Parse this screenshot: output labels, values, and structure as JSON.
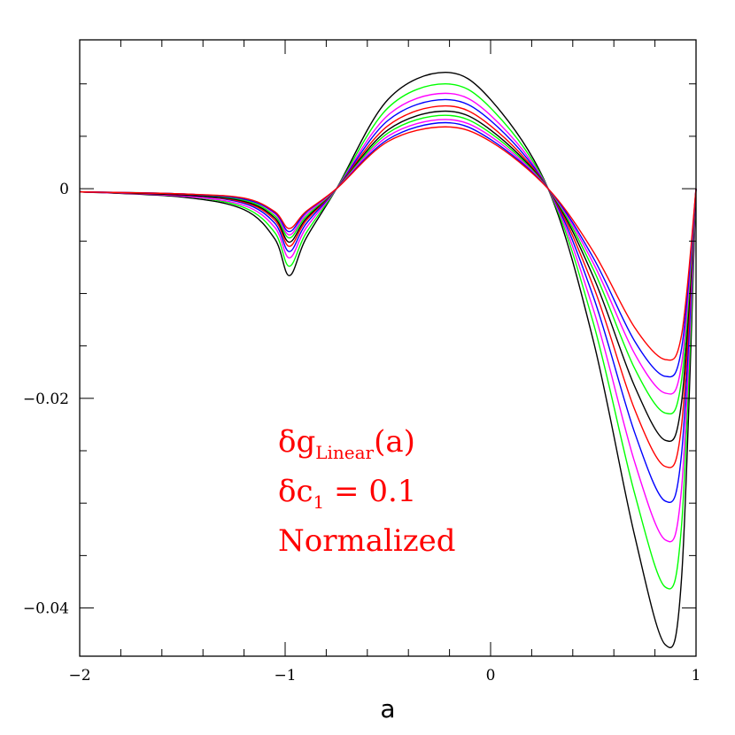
{
  "chart_data": {
    "type": "line",
    "title": "",
    "xlabel": "a",
    "ylabel": "",
    "xlim": [
      -2,
      1
    ],
    "ylim": [
      -0.0446,
      0.0142
    ],
    "x_ticks": [
      {
        "value": -2,
        "label": "−2"
      },
      {
        "value": -1,
        "label": "−1"
      },
      {
        "value": 0,
        "label": "0"
      },
      {
        "value": 1,
        "label": "1"
      }
    ],
    "y_ticks": [
      {
        "value": 0,
        "label": "0"
      },
      {
        "value": -0.02,
        "label": "−0.02"
      },
      {
        "value": -0.04,
        "label": "−0.04"
      }
    ],
    "grid": false,
    "annotations": {
      "line1_main": "δg",
      "line1_sub": "Linear",
      "line1_tail": "(a)",
      "line2_main": "δc",
      "line2_sub": "1",
      "line2_tail": " = 0.1",
      "line3": "Normalized"
    },
    "series": [
      {
        "color": "#000000",
        "values": [
          [
            -2,
            -0.0003
          ],
          [
            -1.5,
            -0.0008
          ],
          [
            -1.2,
            -0.002
          ],
          [
            -1.05,
            -0.0048
          ],
          [
            -0.98,
            -0.0083
          ],
          [
            -0.9,
            -0.0048
          ],
          [
            -0.75,
            0.0
          ],
          [
            -0.5,
            0.0085
          ],
          [
            -0.22,
            0.0111
          ],
          [
            0,
            0.0085
          ],
          [
            0.28,
            0.0
          ],
          [
            0.5,
            -0.0145
          ],
          [
            0.7,
            -0.033
          ],
          [
            0.85,
            -0.0435
          ],
          [
            0.93,
            -0.037
          ],
          [
            1.0,
            0.0
          ]
        ]
      },
      {
        "color": "#00ff00",
        "values": [
          [
            -2,
            -0.0003
          ],
          [
            -1.5,
            -0.0007
          ],
          [
            -1.2,
            -0.0018
          ],
          [
            -1.05,
            -0.0042
          ],
          [
            -0.98,
            -0.0074
          ],
          [
            -0.9,
            -0.0043
          ],
          [
            -0.75,
            0.0
          ],
          [
            -0.5,
            0.0077
          ],
          [
            -0.22,
            0.01
          ],
          [
            0,
            0.0077
          ],
          [
            0.28,
            0.0
          ],
          [
            0.5,
            -0.0128
          ],
          [
            0.7,
            -0.029
          ],
          [
            0.85,
            -0.038
          ],
          [
            0.93,
            -0.032
          ],
          [
            1.0,
            0.0
          ]
        ]
      },
      {
        "color": "#ff00ff",
        "values": [
          [
            -2,
            -0.0003
          ],
          [
            -1.5,
            -0.0007
          ],
          [
            -1.2,
            -0.0016
          ],
          [
            -1.05,
            -0.0037
          ],
          [
            -0.98,
            -0.0066
          ],
          [
            -0.9,
            -0.0038
          ],
          [
            -0.75,
            0.0
          ],
          [
            -0.5,
            0.007
          ],
          [
            -0.22,
            0.0091
          ],
          [
            0,
            0.007
          ],
          [
            0.28,
            0.0
          ],
          [
            0.5,
            -0.0115
          ],
          [
            0.7,
            -0.026
          ],
          [
            0.85,
            -0.0335
          ],
          [
            0.93,
            -0.0285
          ],
          [
            1.0,
            0.0
          ]
        ]
      },
      {
        "color": "#0000ff",
        "values": [
          [
            -2,
            -0.0003
          ],
          [
            -1.5,
            -0.0006
          ],
          [
            -1.2,
            -0.0014
          ],
          [
            -1.05,
            -0.0033
          ],
          [
            -0.98,
            -0.006
          ],
          [
            -0.9,
            -0.0034
          ],
          [
            -0.75,
            0.0
          ],
          [
            -0.5,
            0.0065
          ],
          [
            -0.22,
            0.0085
          ],
          [
            0,
            0.0065
          ],
          [
            0.28,
            0.0
          ],
          [
            0.5,
            -0.0103
          ],
          [
            0.7,
            -0.0232
          ],
          [
            0.85,
            -0.0298
          ],
          [
            0.93,
            -0.0252
          ],
          [
            1.0,
            0.0
          ]
        ]
      },
      {
        "color": "#ff0000",
        "values": [
          [
            -2,
            -0.0003
          ],
          [
            -1.5,
            -0.0006
          ],
          [
            -1.2,
            -0.0013
          ],
          [
            -1.05,
            -0.003
          ],
          [
            -0.98,
            -0.0055
          ],
          [
            -0.9,
            -0.0031
          ],
          [
            -0.75,
            0.0
          ],
          [
            -0.5,
            0.006
          ],
          [
            -0.22,
            0.0079
          ],
          [
            0,
            0.006
          ],
          [
            0.28,
            0.0
          ],
          [
            0.5,
            -0.0093
          ],
          [
            0.7,
            -0.021
          ],
          [
            0.85,
            -0.0265
          ],
          [
            0.93,
            -0.0225
          ],
          [
            1.0,
            0.0
          ]
        ]
      },
      {
        "color": "#000000",
        "values": [
          [
            -2,
            -0.0003
          ],
          [
            -1.5,
            -0.0006
          ],
          [
            -1.2,
            -0.0012
          ],
          [
            -1.05,
            -0.0028
          ],
          [
            -0.98,
            -0.0051
          ],
          [
            -0.9,
            -0.0029
          ],
          [
            -0.75,
            0.0
          ],
          [
            -0.5,
            0.0056
          ],
          [
            -0.22,
            0.0074
          ],
          [
            0,
            0.0056
          ],
          [
            0.28,
            0.0
          ],
          [
            0.5,
            -0.0084
          ],
          [
            0.7,
            -0.0188
          ],
          [
            0.85,
            -0.024
          ],
          [
            0.93,
            -0.0203
          ],
          [
            1.0,
            0.0
          ]
        ]
      },
      {
        "color": "#00ff00",
        "values": [
          [
            -2,
            -0.0003
          ],
          [
            -1.5,
            -0.0005
          ],
          [
            -1.2,
            -0.0011
          ],
          [
            -1.05,
            -0.0026
          ],
          [
            -0.98,
            -0.0047
          ],
          [
            -0.9,
            -0.0027
          ],
          [
            -0.75,
            0.0
          ],
          [
            -0.5,
            0.0053
          ],
          [
            -0.22,
            0.007
          ],
          [
            0,
            0.0053
          ],
          [
            0.28,
            0.0
          ],
          [
            0.5,
            -0.0077
          ],
          [
            0.7,
            -0.0171
          ],
          [
            0.85,
            -0.0214
          ],
          [
            0.93,
            -0.0182
          ],
          [
            1.0,
            0.0
          ]
        ]
      },
      {
        "color": "#ff00ff",
        "values": [
          [
            -2,
            -0.0003
          ],
          [
            -1.5,
            -0.0005
          ],
          [
            -1.2,
            -0.001
          ],
          [
            -1.05,
            -0.0024
          ],
          [
            -0.98,
            -0.0044
          ],
          [
            -0.9,
            -0.0025
          ],
          [
            -0.75,
            0.0
          ],
          [
            -0.5,
            0.005
          ],
          [
            -0.22,
            0.0066
          ],
          [
            0,
            0.005
          ],
          [
            0.28,
            0.0
          ],
          [
            0.5,
            -0.0071
          ],
          [
            0.7,
            -0.0157
          ],
          [
            0.85,
            -0.0195
          ],
          [
            0.93,
            -0.0167
          ],
          [
            1.0,
            0.0
          ]
        ]
      },
      {
        "color": "#0000ff",
        "values": [
          [
            -2,
            -0.0003
          ],
          [
            -1.5,
            -0.0005
          ],
          [
            -1.2,
            -0.001
          ],
          [
            -1.05,
            -0.0023
          ],
          [
            -0.98,
            -0.0041
          ],
          [
            -0.9,
            -0.0023
          ],
          [
            -0.75,
            0.0
          ],
          [
            -0.5,
            0.0047
          ],
          [
            -0.22,
            0.0063
          ],
          [
            0,
            0.0047
          ],
          [
            0.28,
            0.0
          ],
          [
            0.5,
            -0.0066
          ],
          [
            0.7,
            -0.0145
          ],
          [
            0.85,
            -0.0179
          ],
          [
            0.93,
            -0.0152
          ],
          [
            1.0,
            0.0
          ]
        ]
      },
      {
        "color": "#ff0000",
        "values": [
          [
            -2,
            -0.0003
          ],
          [
            -1.5,
            -0.0005
          ],
          [
            -1.2,
            -0.0009
          ],
          [
            -1.05,
            -0.0022
          ],
          [
            -0.98,
            -0.0038
          ],
          [
            -0.9,
            -0.0022
          ],
          [
            -0.75,
            0.0
          ],
          [
            -0.5,
            0.0045
          ],
          [
            -0.22,
            0.0059
          ],
          [
            0,
            0.0045
          ],
          [
            0.28,
            0.0
          ],
          [
            0.5,
            -0.006
          ],
          [
            0.7,
            -0.0132
          ],
          [
            0.85,
            -0.0163
          ],
          [
            0.93,
            -0.0139
          ],
          [
            1.0,
            0.0
          ]
        ]
      }
    ]
  }
}
